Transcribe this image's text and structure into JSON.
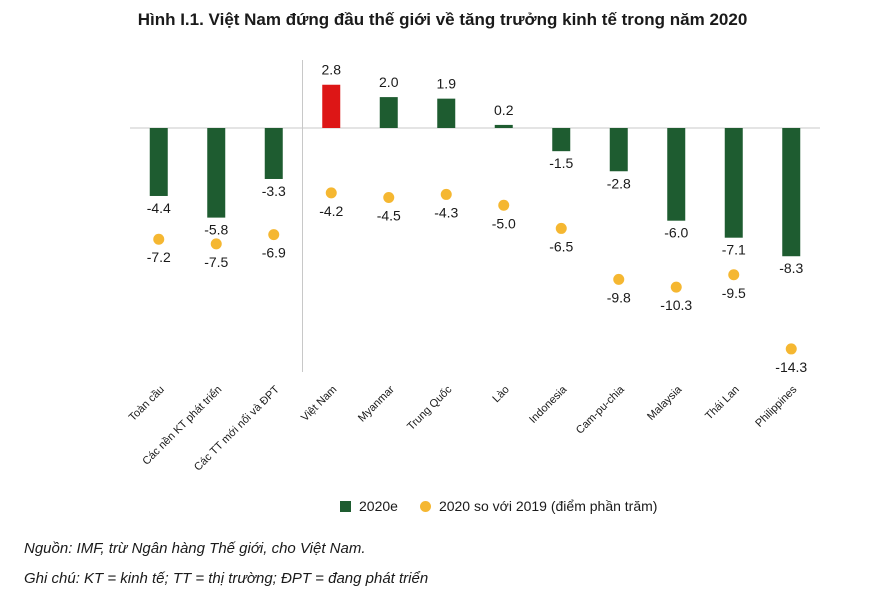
{
  "chart_data": {
    "type": "bar",
    "title": "Hình I.1. Việt Nam đứng đầu thế giới về tăng trưởng kinh tế trong năm 2020",
    "categories": [
      "Toàn cầu",
      "Các nền KT phát triển",
      "Các TT mới nổi và ĐPT",
      "Việt Nam",
      "Myanmar",
      "Trung Quốc",
      "Lào",
      "Indonesia",
      "Cam-pu-chia",
      "Malaysia",
      "Thái Lan",
      "Philippines"
    ],
    "series": [
      {
        "name": "2020e",
        "type": "bar",
        "values": [
          -4.4,
          -5.8,
          -3.3,
          2.8,
          2.0,
          1.9,
          0.2,
          -1.5,
          -2.8,
          -6.0,
          -7.1,
          -8.3
        ]
      },
      {
        "name": "2020 so với 2019 (điểm phần trăm)",
        "type": "scatter",
        "values": [
          -7.2,
          -7.5,
          -6.9,
          -4.2,
          -4.5,
          -4.3,
          -5.0,
          -6.5,
          -9.8,
          -10.3,
          -9.5,
          -14.3
        ]
      }
    ],
    "bar_labels": [
      "-4.4",
      "-5.8",
      "-3.3",
      "2.8",
      "2.0",
      "1.9",
      "0.2",
      "-1.5",
      "-2.8",
      "-6.0",
      "-7.1",
      "-8.3"
    ],
    "dot_labels": [
      "-7.2",
      "-7.5",
      "-6.9",
      "-4.2",
      "-4.5",
      "-4.3",
      "-5.0",
      "-6.5",
      "-9.8",
      "-10.3",
      "-9.5",
      "-14.3"
    ],
    "ylim": [
      -16,
      4
    ],
    "grid": false,
    "legend_position": "bottom",
    "colors": {
      "bar": "#1e5c30",
      "highlight_bar": "#dd1616",
      "dot": "#f5b731"
    },
    "highlight_category": "Việt Nam"
  },
  "legend": {
    "bar_label": "2020e",
    "dot_label": "2020 so với 2019 (điểm phần trăm)"
  },
  "notes": {
    "source": "Nguồn: IMF, trừ Ngân hàng Thế giới, cho Việt Nam.",
    "note": "Ghi chú: KT = kinh tế; TT = thị trường; ĐPT = đang phát triển"
  }
}
